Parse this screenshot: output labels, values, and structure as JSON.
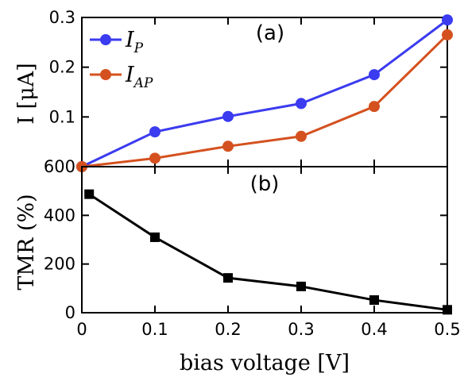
{
  "chart_data": [
    {
      "panel": "(a)",
      "type": "line",
      "ylabel": "I [μA]",
      "ylim": [
        0,
        0.3
      ],
      "yticks": [
        "0.1",
        "0.2",
        "0.3"
      ],
      "xlim": [
        0,
        0.5
      ],
      "x": [
        0,
        0.1,
        0.2,
        0.3,
        0.4,
        0.5
      ],
      "series": [
        {
          "name": "I_P",
          "name_main": "I",
          "name_sub": "P",
          "color": "#3b3bf0",
          "marker": "circle",
          "values": [
            0.0,
            0.07,
            0.101,
            0.127,
            0.185,
            0.295
          ]
        },
        {
          "name": "I_AP",
          "name_main": "I",
          "name_sub": "AP",
          "color": "#d4511f",
          "marker": "circle",
          "values": [
            0.0,
            0.017,
            0.041,
            0.061,
            0.121,
            0.265
          ]
        }
      ],
      "legend": "top-left"
    },
    {
      "panel": "(b)",
      "type": "line",
      "ylabel": "TMR (%)",
      "ylim": [
        0,
        600
      ],
      "yticks": [
        "0",
        "200",
        "400",
        "600"
      ],
      "xlabel": "bias voltage [V]",
      "xlim": [
        0,
        0.5
      ],
      "xticks": [
        "0",
        "0.1",
        "0.2",
        "0.3",
        "0.4",
        "0.5"
      ],
      "series": [
        {
          "color": "#000000",
          "marker": "square",
          "x": [
            0.01,
            0.1,
            0.2,
            0.3,
            0.4,
            0.5
          ],
          "values": [
            487,
            310,
            143,
            108,
            52,
            12
          ]
        }
      ]
    }
  ]
}
